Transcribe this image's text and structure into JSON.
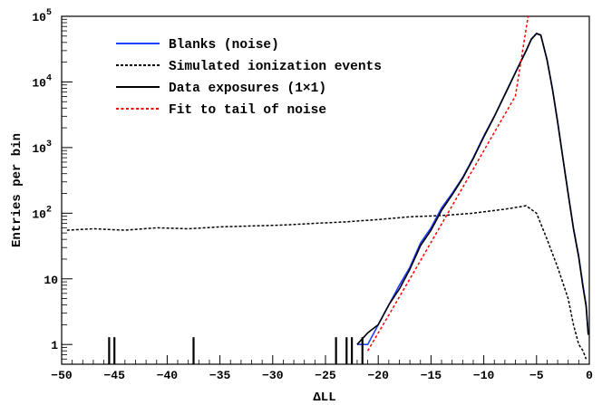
{
  "chart_data": {
    "type": "line",
    "title": "",
    "xlabel": "ΔLL",
    "ylabel": "Entries per bin",
    "xlim": [
      -50,
      0
    ],
    "ylim": [
      0.5,
      100000
    ],
    "yscale": "log",
    "grid": false,
    "legend_position": "top-left",
    "x_ticks": [
      -50,
      -45,
      -40,
      -35,
      -30,
      -25,
      -20,
      -15,
      -10,
      -5,
      0
    ],
    "y_ticks": [
      {
        "value": 1,
        "base": "1",
        "exp": ""
      },
      {
        "value": 10,
        "base": "10",
        "exp": ""
      },
      {
        "value": 100,
        "base": "10",
        "exp": "2"
      },
      {
        "value": 1000,
        "base": "10",
        "exp": "3"
      },
      {
        "value": 10000,
        "base": "10",
        "exp": "4"
      },
      {
        "value": 100000,
        "base": "10",
        "exp": "5"
      }
    ],
    "series": [
      {
        "name": "Blanks (noise)",
        "color": "#1f3fff",
        "style": "solid",
        "x": [
          -22,
          -21,
          -20,
          -19,
          -18,
          -17,
          -16,
          -15,
          -14,
          -13,
          -12,
          -11,
          -10,
          -9,
          -8,
          -7,
          -6,
          -5.5,
          -5,
          -4.6,
          -4,
          -3.5,
          -3,
          -2.5,
          -2,
          -1.5,
          -1,
          -0.6,
          -0.3,
          -0.1
        ],
        "y": [
          1,
          1,
          2,
          4,
          8,
          15,
          35,
          60,
          120,
          200,
          350,
          700,
          1500,
          3000,
          6500,
          14000,
          30000,
          45000,
          55000,
          52000,
          22000,
          8000,
          2500,
          700,
          200,
          60,
          22,
          8,
          4,
          1.5
        ]
      },
      {
        "name": "Simulated ionization events",
        "color": "#000000",
        "style": "dashed",
        "x": [
          -49.5,
          -47,
          -44,
          -41,
          -38,
          -35,
          -32,
          -29,
          -26,
          -23,
          -20,
          -17,
          -14,
          -11,
          -8,
          -6,
          -5,
          -4,
          -3,
          -2,
          -1.5,
          -1,
          -0.6,
          -0.3
        ],
        "y": [
          55,
          58,
          55,
          60,
          58,
          62,
          64,
          66,
          70,
          74,
          80,
          88,
          92,
          100,
          115,
          130,
          100,
          40,
          15,
          5,
          2,
          1,
          0.8,
          0.6
        ]
      },
      {
        "name": "Data exposures (1×1)",
        "color": "#000000",
        "style": "solid",
        "x": [
          -22,
          -21,
          -20,
          -19,
          -18,
          -17,
          -16,
          -15,
          -14,
          -13,
          -12,
          -11,
          -10,
          -9,
          -8,
          -7,
          -6,
          -5.5,
          -5,
          -4.6,
          -4,
          -3.5,
          -3,
          -2.5,
          -2,
          -1.5,
          -1,
          -0.6,
          -0.3,
          -0.1
        ],
        "y": [
          1,
          1.5,
          2,
          4,
          7,
          14,
          32,
          55,
          110,
          190,
          340,
          680,
          1450,
          2950,
          6400,
          13800,
          29500,
          44500,
          54500,
          51500,
          21500,
          7800,
          2400,
          680,
          195,
          58,
          21,
          7.5,
          3.8,
          1.4
        ]
      },
      {
        "name": "Fit to tail of noise",
        "color": "#ff0000",
        "style": "dotted",
        "x": [
          -21,
          -19,
          -17,
          -15,
          -13,
          -11,
          -9,
          -7,
          -5.8
        ],
        "y": [
          0.8,
          2.8,
          10,
          36,
          130,
          470,
          1700,
          6100,
          110000
        ]
      }
    ],
    "sparse_data": {
      "x": [
        -45.5,
        -45,
        -37.5,
        -24,
        -23,
        -22.5,
        -21.5
      ],
      "y": [
        1,
        1,
        1,
        1,
        1,
        1,
        1
      ]
    }
  }
}
